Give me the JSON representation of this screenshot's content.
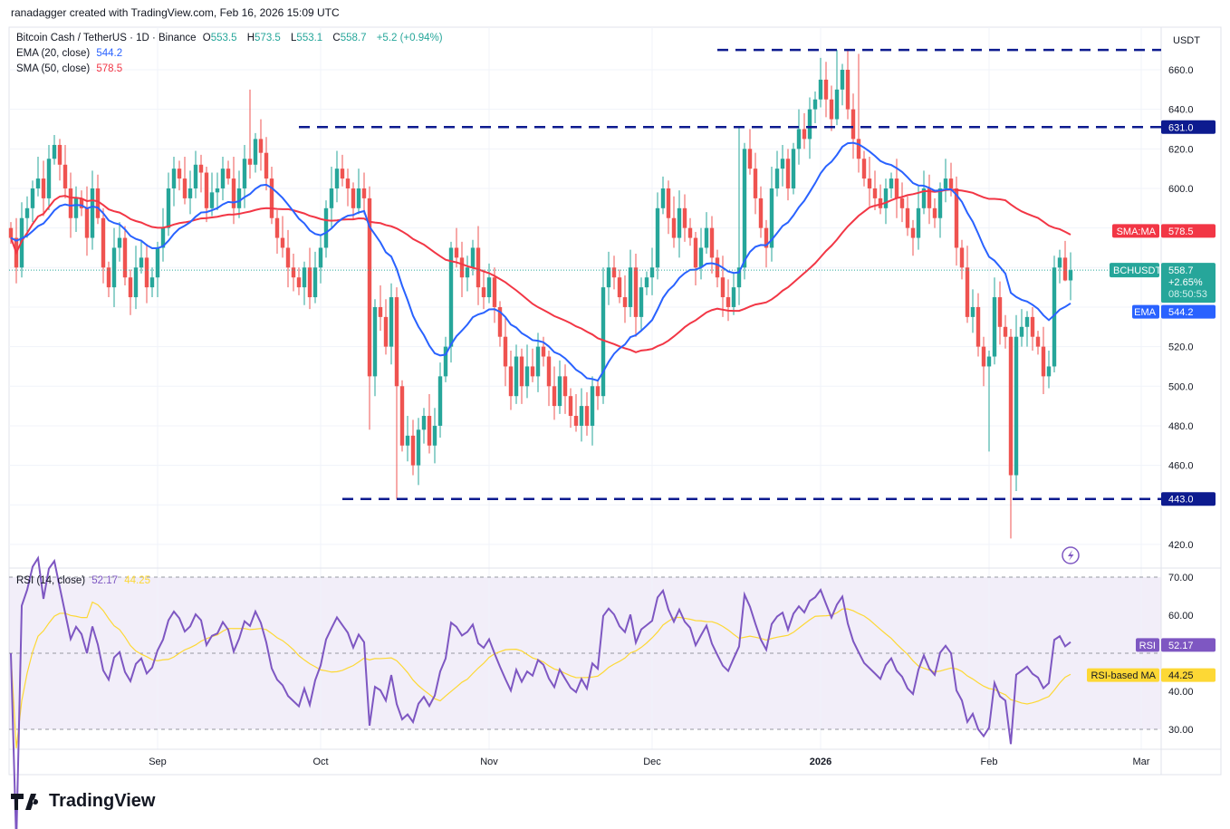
{
  "credit": "ranadagger created with TradingView.com, Feb 16, 2026 15:09 UTC",
  "legend": {
    "symbol": "Bitcoin Cash / TetherUS · 1D · Binance",
    "o_label": "O",
    "o": "553.5",
    "h_label": "H",
    "h": "573.5",
    "l_label": "L",
    "l": "553.1",
    "c_label": "C",
    "c": "558.7",
    "change": "+5.2 (+0.94%)",
    "ema_label": "EMA (20, close)",
    "ema_value": "544.2",
    "sma_label": "SMA (50, close)",
    "sma_value": "578.5",
    "rsi_label": "RSI (14, close)",
    "rsi_value": "52.17",
    "rsi_ma_value": "44.25"
  },
  "axis_tags": {
    "currency": "USDT",
    "sma_tag": "SMA:MA",
    "sma_value": "578.5",
    "symbol_tag": "BCHUSDT",
    "price": "558.7",
    "pct": "+2.65%",
    "countdown": "08:50:53",
    "ema_tag": "EMA",
    "ema_value": "544.2",
    "rsi_tag": "RSI",
    "rsi_value": "52.17",
    "rsi_ma_tag": "RSI-based MA",
    "rsi_ma_value": "44.25",
    "level_631": "631.0",
    "level_443": "443.0"
  },
  "colors": {
    "up": "#26a69a",
    "down": "#ef5350",
    "ema": "#2962ff",
    "sma": "#f23645",
    "rsi": "#7e57c2",
    "rsi_ma": "#fdd835",
    "levels": "#0d1b8f"
  },
  "logo": "TradingView",
  "chart_data": {
    "type": "candlestick",
    "title": "Bitcoin Cash / TetherUS · 1D · Binance",
    "start_date": "2025-08-05",
    "end_date": "2026-02-16",
    "closes": [
      575,
      560,
      585,
      590,
      600,
      605,
      595,
      615,
      622,
      612,
      600,
      585,
      595,
      590,
      575,
      600,
      585,
      560,
      550,
      570,
      575,
      555,
      545,
      560,
      565,
      550,
      555,
      570,
      580,
      600,
      610,
      605,
      595,
      600,
      612,
      608,
      590,
      598,
      600,
      610,
      605,
      590,
      600,
      615,
      612,
      625,
      618,
      605,
      585,
      575,
      570,
      560,
      555,
      550,
      560,
      545,
      560,
      570,
      590,
      600,
      610,
      605,
      600,
      590,
      600,
      595,
      505,
      540,
      535,
      520,
      545,
      500,
      470,
      475,
      460,
      478,
      485,
      470,
      480,
      505,
      520,
      570,
      565,
      555,
      560,
      570,
      550,
      545,
      555,
      540,
      525,
      510,
      495,
      515,
      500,
      510,
      505,
      520,
      515,
      500,
      490,
      505,
      495,
      485,
      480,
      490,
      480,
      500,
      495,
      550,
      560,
      555,
      545,
      540,
      560,
      535,
      550,
      555,
      560,
      590,
      600,
      585,
      575,
      590,
      580,
      575,
      560,
      570,
      580,
      565,
      555,
      545,
      540,
      550,
      560,
      620,
      610,
      595,
      580,
      570,
      600,
      610,
      615,
      600,
      620,
      630,
      625,
      640,
      645,
      655,
      645,
      635,
      650,
      660,
      640,
      625,
      615,
      605,
      600,
      595,
      590,
      600,
      605,
      595,
      590,
      580,
      575,
      590,
      600,
      590,
      585,
      600,
      605,
      600,
      570,
      560,
      535,
      540,
      520,
      510,
      515,
      545,
      530,
      525,
      455,
      525,
      530,
      535,
      525,
      520,
      505,
      510,
      560,
      565,
      553.5,
      558.7
    ],
    "extreme_wicks": [
      {
        "index": 44,
        "high": 650
      },
      {
        "index": 66,
        "low": 478
      },
      {
        "index": 71,
        "low": 443
      },
      {
        "index": 134,
        "high": 631
      },
      {
        "index": 152,
        "high": 670
      },
      {
        "index": 156,
        "high": 668
      },
      {
        "index": 180,
        "low": 467
      },
      {
        "index": 184,
        "low": 423
      },
      {
        "index": 187,
        "high": 538
      },
      {
        "index": 194,
        "low": 553.1,
        "high": 573.5
      }
    ],
    "indicators": [
      "EMA 20 (close)",
      "SMA 50 (close)",
      "RSI 14 (close)",
      "RSI-based MA 14"
    ],
    "horizontal_levels": [
      670,
      631,
      443
    ],
    "y_ticks": [
      420,
      440,
      460,
      480,
      500,
      520,
      540,
      560,
      580,
      600,
      620,
      640,
      660
    ],
    "ylim": [
      410,
      675
    ],
    "rsi_ticks": [
      30,
      40,
      50,
      60,
      70
    ],
    "x_ticks": [
      {
        "label": "Sep",
        "index": 27
      },
      {
        "label": "Oct",
        "index": 57
      },
      {
        "label": "Nov",
        "index": 88
      },
      {
        "label": "Dec",
        "index": 118
      },
      {
        "label": "2026",
        "index": 149
      },
      {
        "label": "Feb",
        "index": 180
      },
      {
        "label": "Mar",
        "index": 208
      }
    ]
  }
}
